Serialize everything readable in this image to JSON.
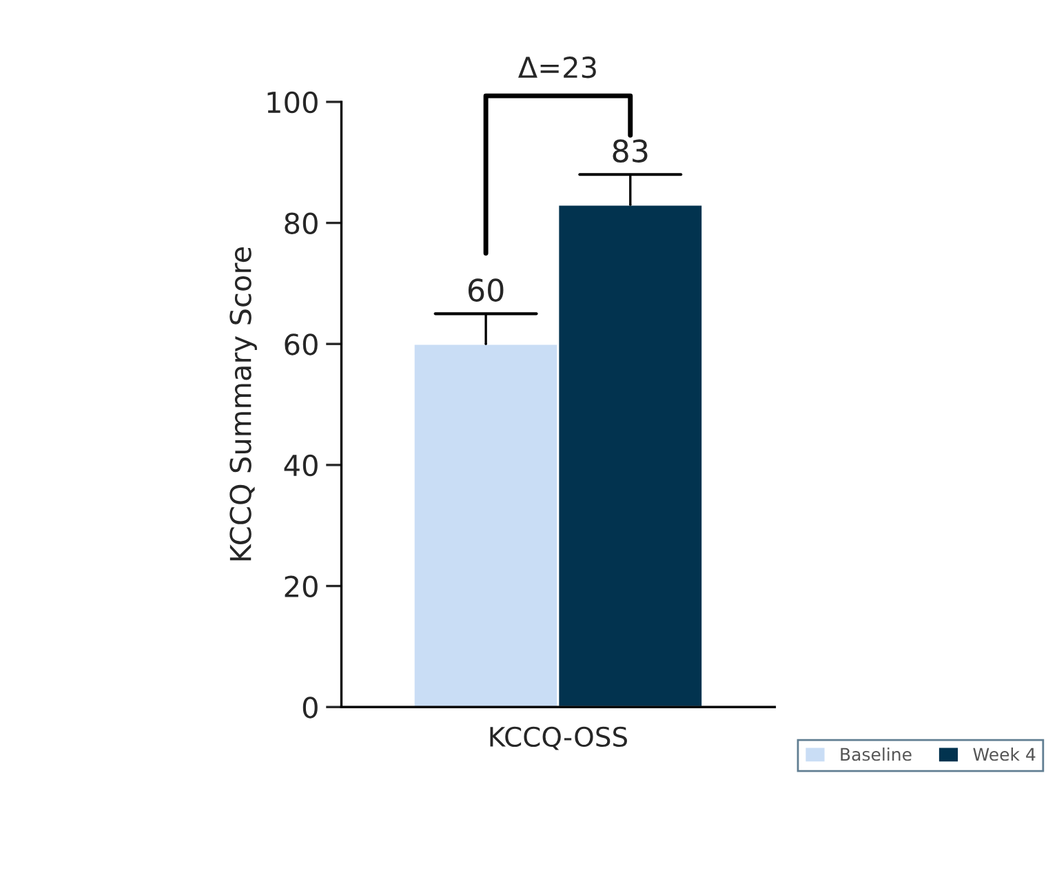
{
  "chart_data": {
    "type": "bar",
    "ylabel": "KCCQ Summary Score",
    "categories": [
      "KCCQ-OSS"
    ],
    "series": [
      {
        "name": "Baseline",
        "color": "#c9ddf5",
        "values": [
          60
        ],
        "errors": [
          [
            60,
            65
          ]
        ]
      },
      {
        "name": "Week 4",
        "color": "#02334f",
        "values": [
          83
        ],
        "errors": [
          [
            83,
            88
          ]
        ]
      }
    ],
    "ylim": [
      0,
      100
    ],
    "yticks": [
      0,
      20,
      40,
      60,
      80,
      100
    ],
    "data_labels": true,
    "grid": false,
    "legend": "bottom right",
    "annotations": [
      "Δ=23"
    ]
  }
}
